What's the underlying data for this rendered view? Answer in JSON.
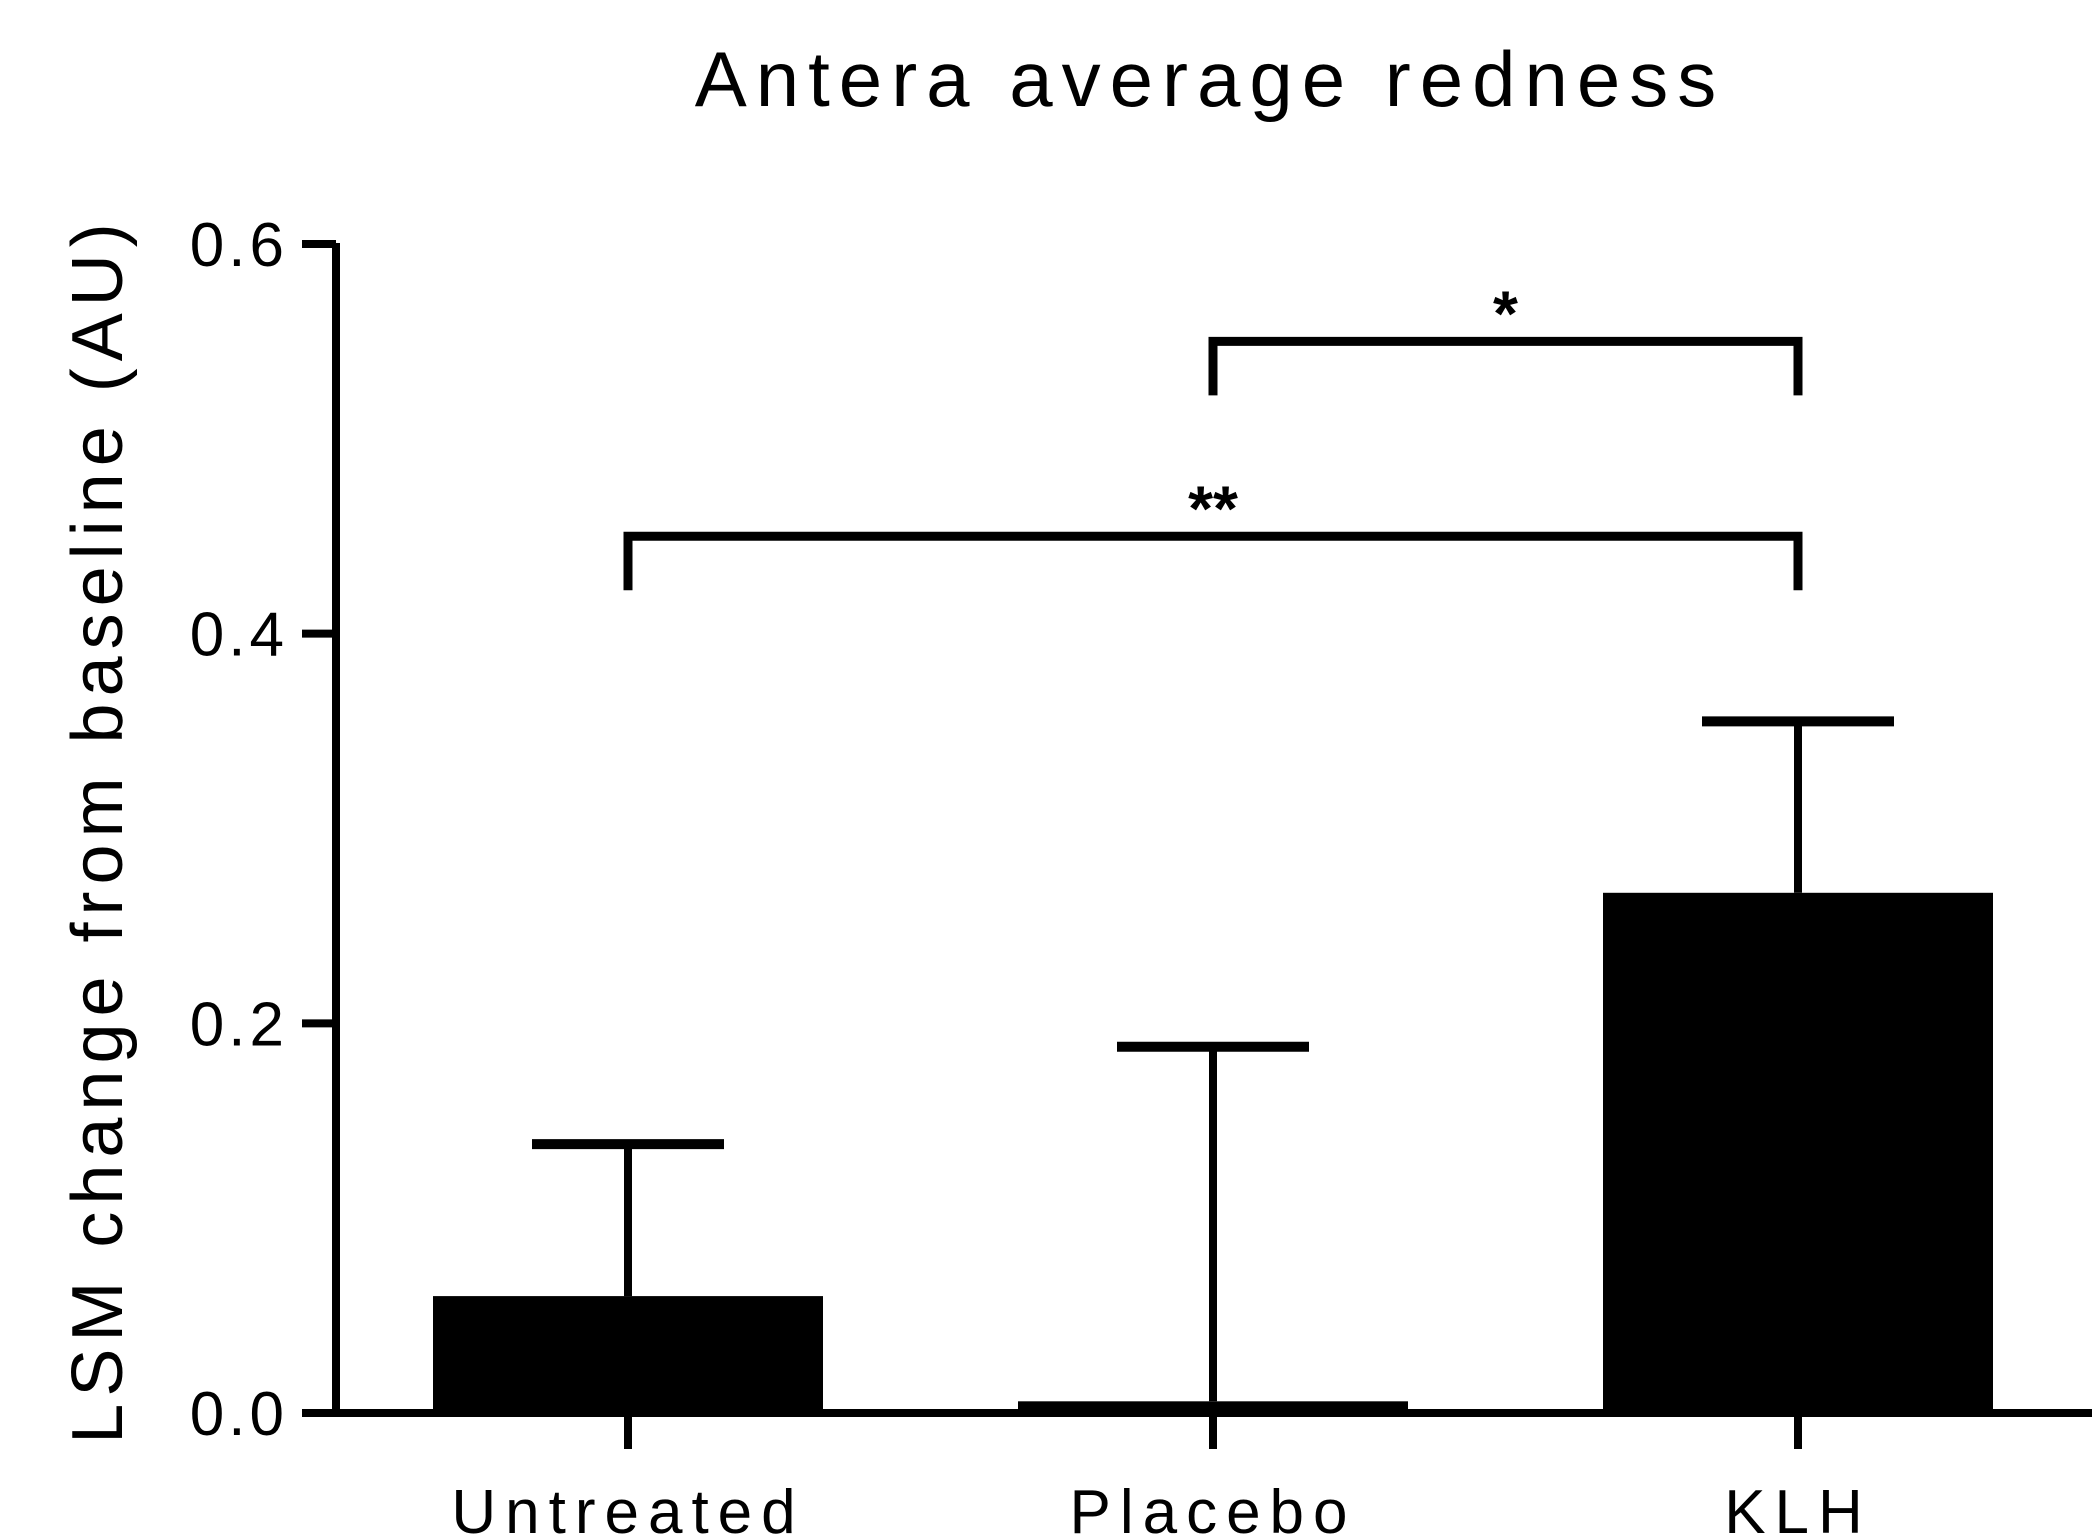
{
  "chart_data": {
    "type": "bar",
    "title": "Antera average redness",
    "xlabel": "",
    "ylabel": "LSM change from baseline (AU)",
    "categories": [
      "Untreated",
      "Placebo",
      "KLH"
    ],
    "values": [
      0.06,
      0.006,
      0.267
    ],
    "error_upper": [
      0.138,
      0.188,
      0.355
    ],
    "ylim": [
      0,
      0.6
    ],
    "yticks": [
      "0.0",
      "0.2",
      "0.4",
      "0.6"
    ],
    "ytick_values": [
      0,
      0.2,
      0.4,
      0.6
    ],
    "bar_color": "#000000",
    "grid": false,
    "legend": "none",
    "significance": [
      {
        "from": 1,
        "to": 2,
        "label": "*",
        "level": 0.55
      },
      {
        "from": 0,
        "to": 2,
        "label": "**",
        "level": 0.45
      }
    ]
  }
}
